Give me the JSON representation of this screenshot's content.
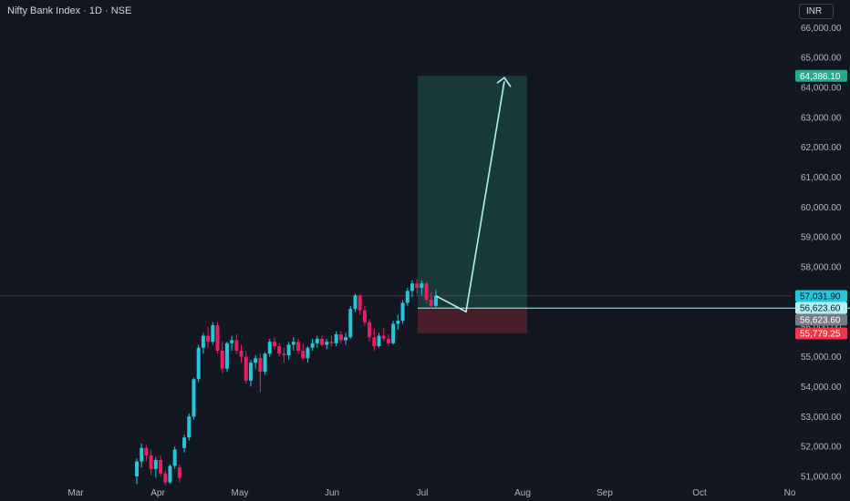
{
  "header": {
    "title": "Nifty Bank Index · 1D · NSE",
    "currency": "INR"
  },
  "colors": {
    "background": "#131722",
    "up": "#26c6da",
    "down": "#e91e63",
    "target_zone": "#1b3d3b",
    "stop_zone": "#4a1f2b",
    "projection": "#b2f0f7"
  },
  "chart_data": {
    "type": "candlestick",
    "x_axis": {
      "ticks": [
        "Mar",
        "Apr",
        "May",
        "Jun",
        "Jul",
        "Aug",
        "Sep",
        "Oct",
        "No"
      ]
    },
    "y_axis": {
      "ticks": [
        "51,000.00",
        "52,000.00",
        "53,000.00",
        "54,000.00",
        "55,000.00",
        "56,000.00",
        "57,000.00",
        "58,000.00",
        "59,000.00",
        "60,000.00",
        "61,000.00",
        "62,000.00",
        "63,000.00",
        "64,000.00",
        "65,000.00",
        "66,000.00"
      ],
      "range": [
        50900,
        66300
      ]
    },
    "price_labels": [
      {
        "text": "64,386.10",
        "value": 64386.1,
        "color": "#22ab94",
        "text_color": "#ffffff"
      },
      {
        "text": "57,031.90",
        "value": 57031.9,
        "color": "#26c6da",
        "text_color": "#131722"
      },
      {
        "text": "56,623.60",
        "value": 56623.6,
        "color": "#b2f0f7",
        "text_color": "#131722"
      },
      {
        "text": "56,623.60",
        "value": 56623.6,
        "color": "#787b86",
        "text_color": "#ffffff"
      },
      {
        "text": "55,779.25",
        "value": 55779.25,
        "color": "#f23645",
        "text_color": "#ffffff"
      }
    ],
    "position": {
      "entry": 56623.6,
      "target": 64386.1,
      "stop": 55779.25
    },
    "current_price": 57031.9,
    "candles": [
      [
        51000,
        51600,
        50750,
        51500
      ],
      [
        51500,
        52100,
        51300,
        51950
      ],
      [
        51950,
        52050,
        51500,
        51700
      ],
      [
        51700,
        51900,
        51050,
        51250
      ],
      [
        51250,
        51650,
        50950,
        51550
      ],
      [
        51550,
        51700,
        51000,
        51100
      ],
      [
        51100,
        51200,
        50700,
        50800
      ],
      [
        50800,
        51400,
        50750,
        51350
      ],
      [
        51350,
        52000,
        51250,
        51900
      ],
      [
        51300,
        51400,
        50800,
        50950
      ],
      [
        51950,
        52400,
        51800,
        52300
      ],
      [
        52300,
        53100,
        52200,
        53000
      ],
      [
        53000,
        54300,
        52900,
        54250
      ],
      [
        54250,
        55400,
        54150,
        55300
      ],
      [
        55300,
        55800,
        55100,
        55700
      ],
      [
        55700,
        56000,
        55300,
        55500
      ],
      [
        55500,
        56150,
        55400,
        56050
      ],
      [
        56050,
        56150,
        55100,
        55200
      ],
      [
        55200,
        55500,
        54450,
        54600
      ],
      [
        54600,
        55500,
        54500,
        55450
      ],
      [
        55450,
        55700,
        55200,
        55550
      ],
      [
        55550,
        55750,
        55100,
        55200
      ],
      [
        55200,
        55400,
        54800,
        55000
      ],
      [
        55000,
        55200,
        54100,
        54200
      ],
      [
        54200,
        54900,
        54000,
        54800
      ],
      [
        54800,
        55050,
        54600,
        54950
      ],
      [
        54950,
        55100,
        53800,
        54500
      ],
      [
        54500,
        55150,
        54400,
        55100
      ],
      [
        55100,
        55600,
        55000,
        55500
      ],
      [
        55500,
        55650,
        55250,
        55350
      ],
      [
        55350,
        55450,
        55000,
        55100
      ],
      [
        55100,
        55300,
        54800,
        55050
      ],
      [
        55050,
        55500,
        54900,
        55400
      ],
      [
        55400,
        55650,
        55200,
        55500
      ],
      [
        55500,
        55600,
        55100,
        55200
      ],
      [
        55200,
        55450,
        54900,
        54950
      ],
      [
        54950,
        55350,
        54800,
        55300
      ],
      [
        55300,
        55600,
        55200,
        55450
      ],
      [
        55450,
        55700,
        55300,
        55600
      ],
      [
        55600,
        55700,
        55350,
        55400
      ],
      [
        55400,
        55600,
        55250,
        55500
      ],
      [
        55500,
        55700,
        55350,
        55450
      ],
      [
        55450,
        55850,
        55350,
        55750
      ],
      [
        55750,
        55850,
        55450,
        55550
      ],
      [
        55550,
        55800,
        55400,
        55650
      ],
      [
        55650,
        56700,
        55600,
        56600
      ],
      [
        56600,
        57100,
        56500,
        57050
      ],
      [
        57050,
        57100,
        56400,
        56550
      ],
      [
        56550,
        56700,
        56050,
        56150
      ],
      [
        56150,
        56250,
        55500,
        55650
      ],
      [
        55650,
        55950,
        55200,
        55350
      ],
      [
        55350,
        55800,
        55300,
        55700
      ],
      [
        55700,
        55950,
        55500,
        55600
      ],
      [
        55600,
        55750,
        55350,
        55450
      ],
      [
        55450,
        56200,
        55400,
        56100
      ],
      [
        56100,
        56400,
        55900,
        56200
      ],
      [
        56200,
        56900,
        56100,
        56800
      ],
      [
        56800,
        57300,
        56700,
        57200
      ],
      [
        57200,
        57550,
        57000,
        57450
      ],
      [
        57450,
        57600,
        57100,
        57300
      ],
      [
        57300,
        57550,
        57050,
        57450
      ],
      [
        57450,
        57500,
        56800,
        56900
      ],
      [
        56900,
        57150,
        56600,
        56700
      ],
      [
        56700,
        57250,
        56600,
        57032
      ]
    ]
  }
}
